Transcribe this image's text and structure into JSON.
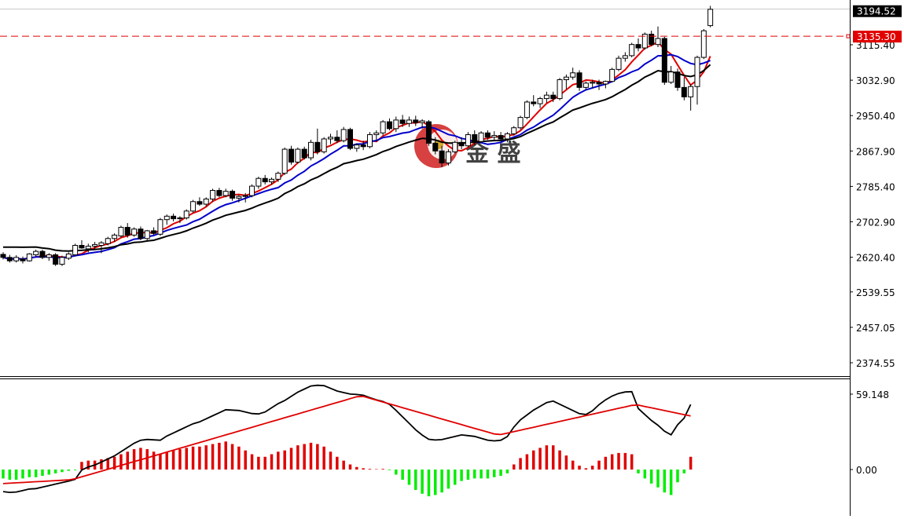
{
  "chart_data": [
    {
      "type": "candlestick",
      "panel": "price",
      "ylim": [
        2340,
        3215
      ],
      "y_ticks": [
        "3115.40",
        "3032.90",
        "2950.40",
        "2867.90",
        "2785.40",
        "2702.90",
        "2620.40",
        "2539.55",
        "2457.05",
        "2374.55"
      ],
      "current_price": {
        "label": "3194.52",
        "value": 3194.52
      },
      "reference_line": {
        "label": "3135.30",
        "value": 3135.3,
        "color": "#e00000",
        "style": "dashed"
      },
      "candles": [
        [
          2627,
          2632,
          2615,
          2620
        ],
        [
          2620,
          2626,
          2608,
          2612
        ],
        [
          2612,
          2625,
          2608,
          2620
        ],
        [
          2616,
          2622,
          2606,
          2612
        ],
        [
          2612,
          2630,
          2610,
          2628
        ],
        [
          2626,
          2638,
          2622,
          2634
        ],
        [
          2634,
          2638,
          2616,
          2620
        ],
        [
          2620,
          2630,
          2612,
          2626
        ],
        [
          2626,
          2630,
          2600,
          2604
        ],
        [
          2604,
          2624,
          2600,
          2620
        ],
        [
          2618,
          2632,
          2614,
          2628
        ],
        [
          2626,
          2652,
          2622,
          2648
        ],
        [
          2648,
          2660,
          2640,
          2642
        ],
        [
          2640,
          2652,
          2632,
          2646
        ],
        [
          2646,
          2656,
          2638,
          2650
        ],
        [
          2648,
          2658,
          2630,
          2654
        ],
        [
          2652,
          2668,
          2648,
          2664
        ],
        [
          2664,
          2676,
          2656,
          2672
        ],
        [
          2670,
          2694,
          2666,
          2690
        ],
        [
          2690,
          2700,
          2666,
          2672
        ],
        [
          2672,
          2690,
          2668,
          2686
        ],
        [
          2686,
          2692,
          2660,
          2664
        ],
        [
          2664,
          2684,
          2660,
          2682
        ],
        [
          2682,
          2690,
          2672,
          2676
        ],
        [
          2674,
          2712,
          2670,
          2708
        ],
        [
          2708,
          2720,
          2696,
          2716
        ],
        [
          2716,
          2722,
          2704,
          2710
        ],
        [
          2710,
          2716,
          2700,
          2712
        ],
        [
          2712,
          2732,
          2708,
          2728
        ],
        [
          2728,
          2754,
          2724,
          2750
        ],
        [
          2750,
          2760,
          2740,
          2744
        ],
        [
          2744,
          2760,
          2738,
          2756
        ],
        [
          2756,
          2780,
          2750,
          2776
        ],
        [
          2776,
          2782,
          2760,
          2764
        ],
        [
          2764,
          2780,
          2760,
          2774
        ],
        [
          2774,
          2778,
          2752,
          2758
        ],
        [
          2758,
          2766,
          2748,
          2762
        ],
        [
          2762,
          2770,
          2748,
          2764
        ],
        [
          2764,
          2790,
          2760,
          2786
        ],
        [
          2786,
          2808,
          2780,
          2804
        ],
        [
          2804,
          2812,
          2790,
          2796
        ],
        [
          2796,
          2806,
          2790,
          2802
        ],
        [
          2802,
          2820,
          2796,
          2816
        ],
        [
          2816,
          2876,
          2812,
          2872
        ],
        [
          2872,
          2880,
          2836,
          2842
        ],
        [
          2842,
          2876,
          2838,
          2872
        ],
        [
          2872,
          2878,
          2848,
          2852
        ],
        [
          2852,
          2894,
          2846,
          2888
        ],
        [
          2888,
          2920,
          2860,
          2866
        ],
        [
          2866,
          2900,
          2862,
          2896
        ],
        [
          2896,
          2908,
          2884,
          2900
        ],
        [
          2900,
          2916,
          2886,
          2892
        ],
        [
          2892,
          2924,
          2888,
          2918
        ],
        [
          2918,
          2922,
          2870,
          2874
        ],
        [
          2874,
          2886,
          2866,
          2882
        ],
        [
          2882,
          2892,
          2870,
          2878
        ],
        [
          2878,
          2912,
          2874,
          2906
        ],
        [
          2906,
          2916,
          2890,
          2910
        ],
        [
          2910,
          2940,
          2904,
          2936
        ],
        [
          2936,
          2944,
          2916,
          2920
        ],
        [
          2920,
          2948,
          2912,
          2940
        ],
        [
          2940,
          2952,
          2924,
          2932
        ],
        [
          2932,
          2948,
          2924,
          2940
        ],
        [
          2940,
          2950,
          2926,
          2934
        ],
        [
          2934,
          2942,
          2920,
          2938
        ],
        [
          2936,
          2940,
          2880,
          2886
        ],
        [
          2886,
          2900,
          2860,
          2868
        ],
        [
          2868,
          2880,
          2830,
          2840
        ],
        [
          2840,
          2872,
          2834,
          2866
        ],
        [
          2866,
          2892,
          2862,
          2888
        ],
        [
          2888,
          2900,
          2872,
          2880
        ],
        [
          2880,
          2912,
          2876,
          2906
        ],
        [
          2906,
          2916,
          2882,
          2890
        ],
        [
          2890,
          2914,
          2886,
          2910
        ],
        [
          2910,
          2916,
          2894,
          2900
        ],
        [
          2900,
          2914,
          2892,
          2904
        ],
        [
          2904,
          2912,
          2890,
          2896
        ],
        [
          2896,
          2912,
          2888,
          2908
        ],
        [
          2908,
          2926,
          2904,
          2922
        ],
        [
          2922,
          2950,
          2918,
          2946
        ],
        [
          2946,
          2986,
          2942,
          2982
        ],
        [
          2982,
          2998,
          2972,
          2978
        ],
        [
          2978,
          2994,
          2968,
          2990
        ],
        [
          2990,
          3006,
          2980,
          2998
        ],
        [
          2998,
          3006,
          2982,
          2990
        ],
        [
          2990,
          3038,
          2986,
          3034
        ],
        [
          3034,
          3046,
          3012,
          3040
        ],
        [
          3040,
          3062,
          3034,
          3050
        ],
        [
          3050,
          3056,
          3008,
          3016
        ],
        [
          3016,
          3030,
          3010,
          3026
        ],
        [
          3026,
          3034,
          3014,
          3028
        ],
        [
          3028,
          3034,
          3010,
          3024
        ],
        [
          3024,
          3032,
          3014,
          3030
        ],
        [
          3030,
          3062,
          3028,
          3058
        ],
        [
          3058,
          3090,
          3054,
          3084
        ],
        [
          3084,
          3098,
          3076,
          3090
        ],
        [
          3090,
          3120,
          3086,
          3116
        ],
        [
          3116,
          3130,
          3100,
          3108
        ],
        [
          3108,
          3144,
          3104,
          3140
        ],
        [
          3140,
          3148,
          3112,
          3116
        ],
        [
          3116,
          3158,
          3110,
          3130
        ],
        [
          3130,
          3134,
          3022,
          3028
        ],
        [
          3028,
          3066,
          3024,
          3052
        ],
        [
          3052,
          3060,
          3008,
          3016
        ],
        [
          3016,
          3040,
          2986,
          2994
        ],
        [
          2994,
          3024,
          2962,
          3018
        ],
        [
          3018,
          3090,
          2976,
          3086
        ],
        [
          3086,
          3152,
          3082,
          3148
        ],
        [
          3160,
          3206,
          3156,
          3198
        ]
      ],
      "series": [
        {
          "color": "#e00000",
          "values": []
        },
        {
          "color": "#0000cc",
          "values": []
        },
        {
          "color": "#000000",
          "values": []
        }
      ]
    },
    {
      "type": "bar",
      "panel": "macd",
      "ylim": [
        -22,
        64
      ],
      "y_ticks": [
        "59.148",
        "0.00"
      ],
      "positive_color": "#e00000",
      "negative_color": "#00ee00",
      "histogram": [
        -7,
        -8,
        -8,
        -7,
        -6,
        -6,
        -5,
        -4,
        -3,
        -2,
        -1,
        -0.5,
        6,
        7,
        7,
        8,
        9,
        10,
        12,
        14,
        16,
        17,
        16,
        14,
        12,
        14,
        15,
        16,
        17,
        18,
        18,
        19,
        20,
        21,
        22,
        20,
        18,
        15,
        12,
        10,
        10,
        12,
        14,
        15,
        17,
        19,
        20,
        21,
        20,
        18,
        14,
        10,
        7,
        4,
        2,
        1,
        0.5,
        0.3,
        0.5,
        -0.5,
        -4,
        -8,
        -12,
        -16,
        -19,
        -21,
        -20,
        -18,
        -15,
        -12,
        -9,
        -8,
        -7,
        -7,
        -7,
        -6,
        -5,
        -3,
        4,
        9,
        12,
        15,
        17,
        19,
        19,
        15,
        11,
        7,
        3,
        1,
        3,
        7,
        10,
        12,
        13,
        13,
        12,
        -3,
        -7,
        -11,
        -14,
        -18,
        -20,
        -10,
        -3,
        10
      ],
      "series": [
        {
          "color": "#000000",
          "values": []
        },
        {
          "color": "#e00000",
          "values": []
        }
      ]
    }
  ],
  "watermark": {
    "text": "金 盛"
  }
}
